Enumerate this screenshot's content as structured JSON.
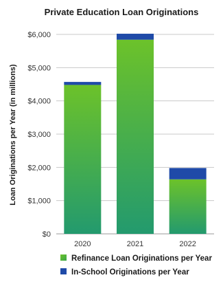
{
  "chart_data": {
    "type": "bar",
    "stacked": true,
    "title": "Private Education Loan Originations",
    "ylabel": "Loan Originations per Year (in millions)",
    "xlabel": "",
    "categories": [
      "2020",
      "2021",
      "2022"
    ],
    "series": [
      {
        "name": "Refinance Loan Originations per Year",
        "values": [
          4480,
          5840,
          1640
        ],
        "color": "#5cb82e",
        "color_dark": "#2a9e6a"
      },
      {
        "name": "In-School Originations per Year",
        "values": [
          90,
          180,
          340
        ],
        "color": "#1f4aa8"
      }
    ],
    "ylim": [
      0,
      6000
    ],
    "yticks": [
      0,
      1000,
      2000,
      3000,
      4000,
      5000,
      6000
    ],
    "ytick_labels": [
      "$0",
      "$1,000",
      "$2,000",
      "$3,000",
      "$4,000",
      "$5,000",
      "$6,000"
    ],
    "grid": true,
    "legend_position": "bottom"
  }
}
